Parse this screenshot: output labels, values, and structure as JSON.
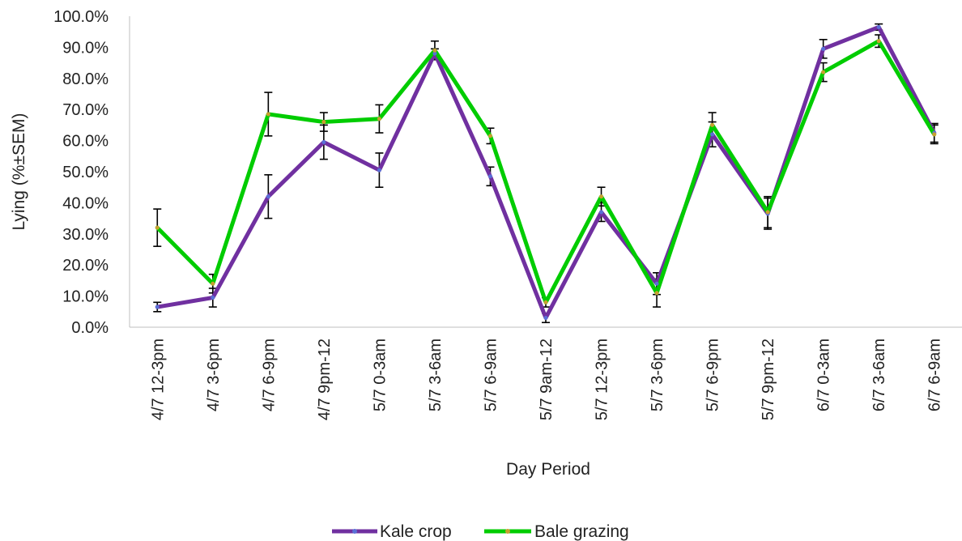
{
  "chart_data": {
    "type": "line",
    "title": "",
    "xlabel": "Day Period",
    "ylabel": "Lying (%±SEM)",
    "ylim": [
      0,
      100
    ],
    "yticks": [
      "0.0%",
      "10.0%",
      "20.0%",
      "30.0%",
      "40.0%",
      "50.0%",
      "60.0%",
      "70.0%",
      "80.0%",
      "90.0%",
      "100.0%"
    ],
    "ytick_values": [
      0,
      10,
      20,
      30,
      40,
      50,
      60,
      70,
      80,
      90,
      100
    ],
    "grid": false,
    "legend_position": "bottom",
    "categories": [
      "4/7 12-3pm",
      "4/7 3-6pm",
      "4/7 6-9pm",
      "4/7 9pm-12",
      "5/7 0-3am",
      "5/7 3-6am",
      "5/7 6-9am",
      "5/7 9am-12",
      "5/7 12-3pm",
      "5/7 3-6pm",
      "5/7 6-9pm",
      "5/7 9pm-12",
      "6/7 0-3am",
      "6/7 3-6am",
      "6/7 6-9am"
    ],
    "series": [
      {
        "name": "Kale crop",
        "color": "#7030A0",
        "values": [
          6.5,
          9.5,
          42,
          59.5,
          50.5,
          88,
          48.5,
          3,
          37,
          14,
          62,
          36.5,
          89.5,
          96.5,
          62.5
        ],
        "error": [
          1.5,
          3,
          7,
          5.5,
          5.5,
          1.5,
          3,
          1.5,
          3,
          3.5,
          4,
          5,
          3,
          1,
          3
        ]
      },
      {
        "name": "Bale grazing",
        "color": "#00CC00",
        "values": [
          32,
          14,
          68.5,
          66,
          67,
          89,
          61.5,
          8,
          42,
          11,
          65,
          37,
          82,
          92,
          62
        ],
        "error": [
          6,
          3,
          7,
          3,
          4.5,
          3,
          2.5,
          1.5,
          3,
          4.5,
          4,
          5,
          3,
          2,
          3
        ]
      }
    ]
  }
}
